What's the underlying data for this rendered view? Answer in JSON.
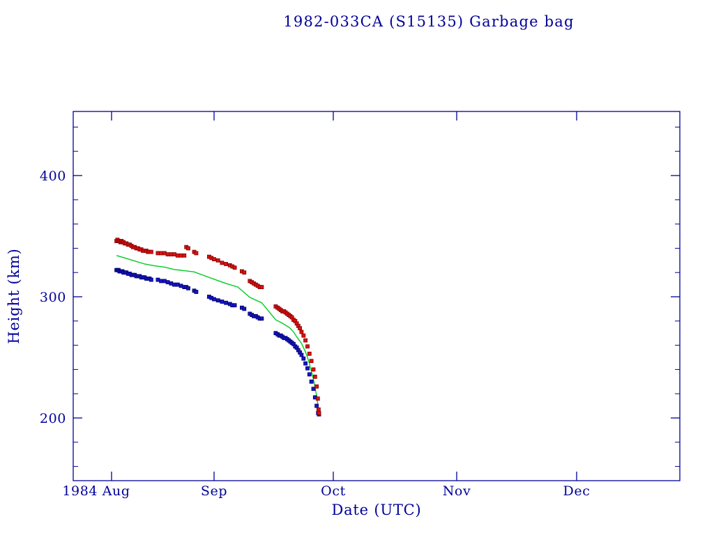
{
  "chart_data": {
    "type": "scatter",
    "title": "1982-033CA (S15135) Garbage bag",
    "xlabel": "Date (UTC)",
    "ylabel": "Height (km)",
    "x_axis": {
      "month_labels": [
        "1984 Aug",
        "Sep",
        "Oct",
        "Nov",
        "Dec"
      ],
      "x_unit": "days since 1984 Aug 1"
    },
    "y_axis": {
      "major_ticks": [
        200,
        300,
        400
      ],
      "minor_step": 20,
      "minor_start": 160,
      "minor_end": 440,
      "ylim": [
        148,
        453
      ]
    },
    "colors": {
      "frame": "#000099",
      "text": "#000099",
      "apogee": "#dd1111",
      "apogee_edge": "#7f0000",
      "perigee": "#1414cc",
      "perigee_edge": "#000066",
      "mean": "#00cc22",
      "background": "#ffffff"
    },
    "series": [
      {
        "id": "mean-height",
        "name": "mean height",
        "style": "line",
        "color_key": "mean",
        "points": [
          [
            1.5,
            334
          ],
          [
            4,
            332
          ],
          [
            7,
            329.5
          ],
          [
            10,
            327
          ],
          [
            13,
            325.5
          ],
          [
            16,
            324.5
          ],
          [
            19,
            322.5
          ],
          [
            22,
            321.5
          ],
          [
            25,
            320.5
          ],
          [
            28,
            317.5
          ],
          [
            31,
            314.5
          ],
          [
            34,
            311
          ],
          [
            37,
            308
          ],
          [
            40,
            299.5
          ],
          [
            43,
            295
          ],
          [
            46.5,
            281
          ],
          [
            48,
            278.5
          ],
          [
            49,
            276.5
          ],
          [
            50,
            274.5
          ],
          [
            51,
            271
          ],
          [
            52,
            266
          ],
          [
            53,
            261.5
          ],
          [
            54,
            254.5
          ],
          [
            54.5,
            250
          ],
          [
            55,
            244.5
          ],
          [
            55.5,
            238.5
          ],
          [
            56,
            232
          ],
          [
            56.4,
            225.5
          ],
          [
            56.8,
            218
          ],
          [
            57.1,
            211
          ],
          [
            57.3,
            205.5
          ],
          [
            57.4,
            203.5
          ]
        ]
      },
      {
        "id": "perigee-height",
        "name": "perigee height",
        "style": "points",
        "color_key": "perigee",
        "edge_key": "perigee_edge",
        "points": [
          [
            1.5,
            322
          ],
          [
            1.8,
            322
          ],
          [
            2.1,
            322
          ],
          [
            2.4,
            321
          ],
          [
            2.7,
            321
          ],
          [
            3,
            321
          ],
          [
            3.3,
            321
          ],
          [
            3.6,
            320
          ],
          [
            4,
            320
          ],
          [
            4.5,
            320
          ],
          [
            5,
            319
          ],
          [
            5.5,
            319
          ],
          [
            6,
            318
          ],
          [
            6.5,
            318
          ],
          [
            7,
            318
          ],
          [
            7.5,
            317
          ],
          [
            8,
            317
          ],
          [
            8.5,
            317
          ],
          [
            9,
            316
          ],
          [
            9.5,
            316
          ],
          [
            10,
            316
          ],
          [
            10.5,
            315
          ],
          [
            11,
            315
          ],
          [
            11.5,
            315
          ],
          [
            12,
            314
          ],
          [
            14,
            314
          ],
          [
            15,
            313
          ],
          [
            16,
            313
          ],
          [
            17,
            312
          ],
          [
            18,
            311
          ],
          [
            19,
            310
          ],
          [
            20,
            310
          ],
          [
            21,
            309
          ],
          [
            22,
            308
          ],
          [
            22.6,
            308
          ],
          [
            23.2,
            307
          ],
          [
            25,
            305
          ],
          [
            25.6,
            304
          ],
          [
            29.5,
            300
          ],
          [
            30.2,
            299
          ],
          [
            31,
            298
          ],
          [
            32,
            297
          ],
          [
            33,
            296
          ],
          [
            34,
            295
          ],
          [
            35,
            294
          ],
          [
            35.6,
            293
          ],
          [
            36.2,
            293
          ],
          [
            38,
            291
          ],
          [
            38.6,
            290
          ],
          [
            40,
            286
          ],
          [
            40.5,
            285
          ],
          [
            41,
            284
          ],
          [
            41.5,
            284
          ],
          [
            42,
            283
          ],
          [
            42.5,
            282
          ],
          [
            43,
            282
          ],
          [
            46.5,
            270
          ],
          [
            47,
            269
          ],
          [
            47.4,
            268
          ],
          [
            47.8,
            268
          ],
          [
            48.2,
            267
          ],
          [
            48.6,
            266
          ],
          [
            49,
            266
          ],
          [
            49.4,
            265
          ],
          [
            49.8,
            264
          ],
          [
            50.2,
            263
          ],
          [
            50.6,
            262
          ],
          [
            51,
            261
          ],
          [
            51.4,
            259
          ],
          [
            51.8,
            258
          ],
          [
            52.2,
            256
          ],
          [
            52.6,
            254
          ],
          [
            53,
            252
          ],
          [
            53.5,
            249
          ],
          [
            54,
            245
          ],
          [
            54.5,
            241
          ],
          [
            55,
            236
          ],
          [
            55.5,
            230
          ],
          [
            56,
            224
          ],
          [
            56.4,
            217
          ],
          [
            56.8,
            210
          ],
          [
            57.2,
            204
          ],
          [
            57.4,
            203
          ]
        ]
      },
      {
        "id": "apogee-height",
        "name": "apogee height",
        "style": "points",
        "color_key": "apogee",
        "edge_key": "apogee_edge",
        "points": [
          [
            1.5,
            346
          ],
          [
            1.8,
            347
          ],
          [
            2.1,
            346
          ],
          [
            2.4,
            346
          ],
          [
            2.7,
            345
          ],
          [
            3,
            346
          ],
          [
            3.3,
            345
          ],
          [
            3.6,
            345
          ],
          [
            4,
            344
          ],
          [
            4.5,
            344
          ],
          [
            5,
            343
          ],
          [
            5.5,
            343
          ],
          [
            6,
            342
          ],
          [
            6.5,
            341
          ],
          [
            7,
            341
          ],
          [
            7.5,
            340
          ],
          [
            8,
            340
          ],
          [
            8.5,
            339
          ],
          [
            9,
            339
          ],
          [
            9.5,
            338
          ],
          [
            10,
            338
          ],
          [
            10.5,
            338
          ],
          [
            11,
            337
          ],
          [
            11.5,
            337
          ],
          [
            12,
            337
          ],
          [
            14,
            336
          ],
          [
            15,
            336
          ],
          [
            16,
            336
          ],
          [
            17,
            335
          ],
          [
            18,
            335
          ],
          [
            19,
            335
          ],
          [
            20,
            334
          ],
          [
            21,
            334
          ],
          [
            22,
            334
          ],
          [
            22.6,
            341
          ],
          [
            23.2,
            340
          ],
          [
            25,
            337
          ],
          [
            25.6,
            336
          ],
          [
            29.5,
            333
          ],
          [
            30.2,
            332
          ],
          [
            31,
            331
          ],
          [
            32,
            330
          ],
          [
            33,
            328
          ],
          [
            34,
            327
          ],
          [
            35,
            326
          ],
          [
            35.6,
            325
          ],
          [
            36.2,
            324
          ],
          [
            38,
            321
          ],
          [
            38.6,
            320
          ],
          [
            40,
            313
          ],
          [
            40.5,
            312
          ],
          [
            41,
            311
          ],
          [
            41.5,
            310
          ],
          [
            42,
            309
          ],
          [
            42.5,
            308
          ],
          [
            43,
            308
          ],
          [
            46.5,
            292
          ],
          [
            47,
            291
          ],
          [
            47.4,
            290
          ],
          [
            47.8,
            289
          ],
          [
            48.2,
            288
          ],
          [
            48.6,
            288
          ],
          [
            49,
            287
          ],
          [
            49.4,
            286
          ],
          [
            49.8,
            285
          ],
          [
            50.2,
            284
          ],
          [
            50.6,
            283
          ],
          [
            51,
            281
          ],
          [
            51.4,
            280
          ],
          [
            51.8,
            278
          ],
          [
            52.2,
            276
          ],
          [
            52.6,
            274
          ],
          [
            53,
            271
          ],
          [
            53.5,
            268
          ],
          [
            54,
            264
          ],
          [
            54.5,
            259
          ],
          [
            55,
            253
          ],
          [
            55.5,
            247
          ],
          [
            56,
            240
          ],
          [
            56.4,
            234
          ],
          [
            56.8,
            226
          ],
          [
            57.1,
            216
          ],
          [
            57.3,
            207
          ],
          [
            57.4,
            204
          ]
        ]
      }
    ]
  }
}
